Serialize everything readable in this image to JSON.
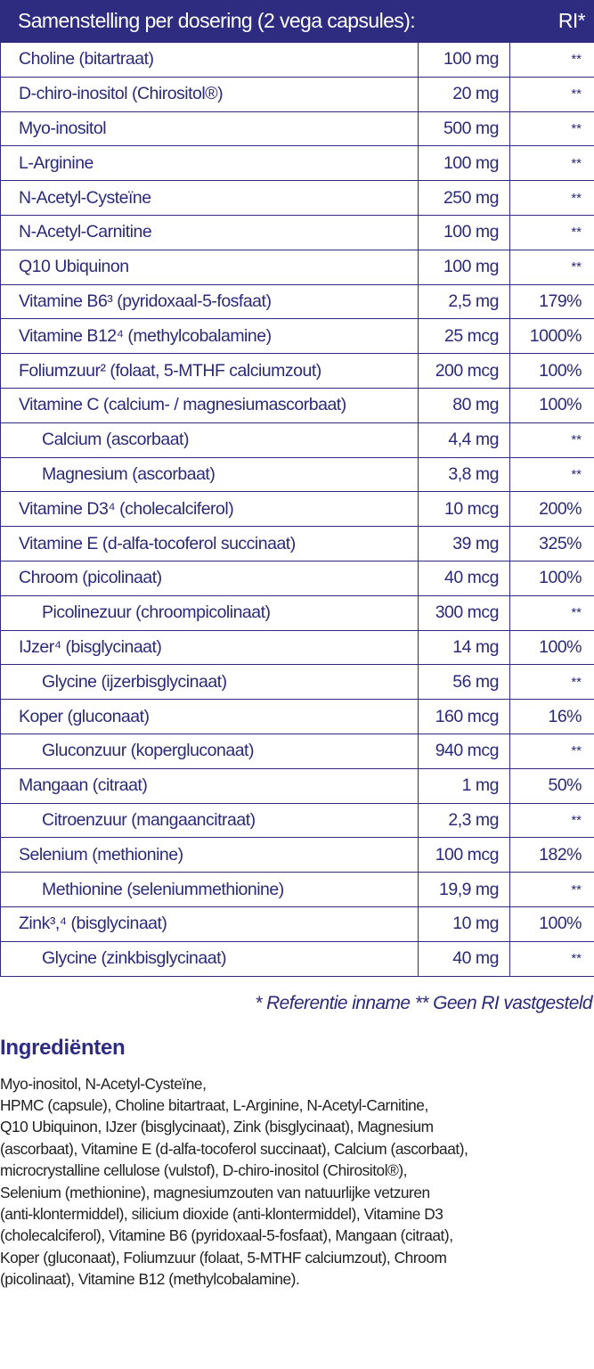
{
  "table": {
    "header_title": "Samenstelling per dosering (2 vega capsules):",
    "header_ri": "RI*",
    "rows": [
      {
        "name": "Choline (bitartraat)",
        "amount": "100 mg",
        "ri": "**",
        "sub": false
      },
      {
        "name": "D-chiro-inositol (Chirositol®)",
        "amount": "20 mg",
        "ri": "**",
        "sub": false
      },
      {
        "name": "Myo-inositol",
        "amount": "500 mg",
        "ri": "**",
        "sub": false
      },
      {
        "name": "L-Arginine",
        "amount": "100 mg",
        "ri": "**",
        "sub": false
      },
      {
        "name": "N-Acetyl-Cysteïne",
        "amount": "250 mg",
        "ri": "**",
        "sub": false
      },
      {
        "name": "N-Acetyl-Carnitine",
        "amount": "100 mg",
        "ri": "**",
        "sub": false
      },
      {
        "name": "Q10 Ubiquinon",
        "amount": "100 mg",
        "ri": "**",
        "sub": false
      },
      {
        "name": "Vitamine B6³ (pyridoxaal-5-fosfaat)",
        "amount": "2,5 mg",
        "ri": "179%",
        "sub": false
      },
      {
        "name": "Vitamine B12⁴ (methylcobalamine)",
        "amount": "25 mcg",
        "ri": "1000%",
        "sub": false
      },
      {
        "name": "Foliumzuur² (folaat, 5-MTHF calciumzout)",
        "amount": "200 mcg",
        "ri": "100%",
        "sub": false
      },
      {
        "name": "Vitamine C (calcium- / magnesiumascorbaat)",
        "amount": "80 mg",
        "ri": "100%",
        "sub": false
      },
      {
        "name": "Calcium (ascorbaat)",
        "amount": "4,4 mg",
        "ri": "**",
        "sub": true
      },
      {
        "name": "Magnesium (ascorbaat)",
        "amount": "3,8 mg",
        "ri": "**",
        "sub": true
      },
      {
        "name": "Vitamine D3⁴ (cholecalciferol)",
        "amount": "10 mcg",
        "ri": "200%",
        "sub": false
      },
      {
        "name": "Vitamine E (d-alfa-tocoferol succinaat)",
        "amount": "39 mg",
        "ri": "325%",
        "sub": false
      },
      {
        "name": "Chroom (picolinaat)",
        "amount": "40 mcg",
        "ri": "100%",
        "sub": false
      },
      {
        "name": "Picolinezuur (chroompicolinaat)",
        "amount": "300 mcg",
        "ri": "**",
        "sub": true
      },
      {
        "name": "IJzer⁴ (bisglycinaat)",
        "amount": "14 mg",
        "ri": "100%",
        "sub": false
      },
      {
        "name": "Glycine (ijzerbisglycinaat)",
        "amount": "56 mg",
        "ri": "**",
        "sub": true
      },
      {
        "name": "Koper (gluconaat)",
        "amount": "160 mcg",
        "ri": "16%",
        "sub": false
      },
      {
        "name": "Gluconzuur (kopergluconaat)",
        "amount": "940 mcg",
        "ri": "**",
        "sub": true
      },
      {
        "name": "Mangaan (citraat)",
        "amount": "1 mg",
        "ri": "50%",
        "sub": false
      },
      {
        "name": "Citroenzuur (mangaancitraat)",
        "amount": "2,3 mg",
        "ri": "**",
        "sub": true
      },
      {
        "name": "Selenium (methionine)",
        "amount": "100 mcg",
        "ri": "182%",
        "sub": false
      },
      {
        "name": "Methionine (seleniummethionine)",
        "amount": "19,9 mg",
        "ri": "**",
        "sub": true
      },
      {
        "name": "Zink³,⁴ (bisglycinaat)",
        "amount": "10 mg",
        "ri": "100%",
        "sub": false
      },
      {
        "name": "Glycine (zinkbisglycinaat)",
        "amount": "40 mg",
        "ri": "**",
        "sub": true
      }
    ],
    "footnote": "* Referentie inname  ** Geen RI vastgesteld"
  },
  "ingredients": {
    "heading": "Ingrediënten",
    "lines": [
      "Myo-inositol, N-Acetyl-Cysteïne,",
      "HPMC (capsule), Choline bitartraat, L-Arginine, N-Acetyl-Carnitine,",
      "Q10 Ubiquinon, IJzer (bisglycinaat), Zink (bisglycinaat), Magnesium",
      "(ascorbaat), Vitamine E (d-alfa-tocoferol succinaat), Calcium (ascorbaat),",
      "microcrystalline cellulose (vulstof), D-chiro-inositol (Chirositol®),",
      "Selenium (methionine), magnesiumzouten van natuurlijke vetzuren",
      "(anti-klontermiddel), silicium dioxide (anti-klontermiddel), Vitamine D3",
      "(cholecalciferol), Vitamine B6 (pyridoxaal-5-fosfaat), Mangaan (citraat),",
      "Koper (gluconaat), Foliumzuur (folaat, 5-MTHF calciumzout), Chroom",
      "(picolinaat), Vitamine B12 (methylcobalamine)."
    ]
  },
  "colors": {
    "header_bg": "#2e2c80",
    "table_text": "#2b2a78",
    "body_text": "#222222"
  }
}
